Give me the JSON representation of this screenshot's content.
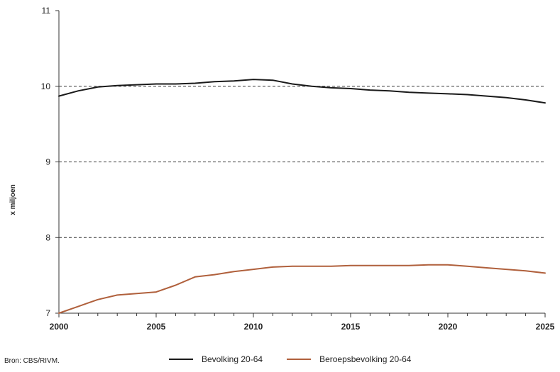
{
  "source": "Bron: CBS/RIVM.",
  "chart_data": {
    "type": "line",
    "title": "",
    "xlabel": "",
    "ylabel": "x miljoen",
    "xlim": [
      2000,
      2025
    ],
    "ylim": [
      7,
      11
    ],
    "xticks": [
      2000,
      2005,
      2010,
      2015,
      2020,
      2025
    ],
    "yticks": [
      7,
      8,
      9,
      10,
      11
    ],
    "grid": "horizontal dashed at 8, 9, 10",
    "legend_position": "bottom",
    "x": [
      2000,
      2001,
      2002,
      2003,
      2004,
      2005,
      2006,
      2007,
      2008,
      2009,
      2010,
      2011,
      2012,
      2013,
      2014,
      2015,
      2016,
      2017,
      2018,
      2019,
      2020,
      2021,
      2022,
      2023,
      2024,
      2025
    ],
    "series": [
      {
        "name": "Bevolking 20-64",
        "color": "#1a1a1a",
        "values": [
          9.87,
          9.94,
          9.99,
          10.01,
          10.02,
          10.03,
          10.03,
          10.04,
          10.06,
          10.07,
          10.09,
          10.08,
          10.03,
          10.0,
          9.98,
          9.97,
          9.95,
          9.94,
          9.92,
          9.91,
          9.9,
          9.89,
          9.87,
          9.85,
          9.82,
          9.78
        ]
      },
      {
        "name": "Beroepsbevolking 20-64",
        "color": "#b0603c",
        "values": [
          7.0,
          7.09,
          7.18,
          7.24,
          7.26,
          7.28,
          7.37,
          7.48,
          7.51,
          7.55,
          7.58,
          7.61,
          7.62,
          7.62,
          7.62,
          7.63,
          7.63,
          7.63,
          7.63,
          7.64,
          7.64,
          7.62,
          7.6,
          7.58,
          7.56,
          7.53
        ]
      }
    ]
  }
}
